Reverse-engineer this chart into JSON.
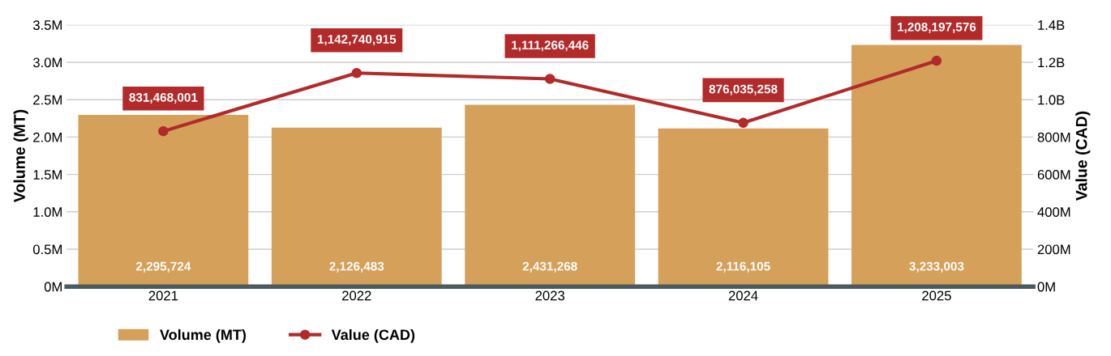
{
  "chart_data": {
    "type": "bar",
    "categories": [
      "2021",
      "2022",
      "2023",
      "2024",
      "2025"
    ],
    "series": [
      {
        "name": "Volume (MT)",
        "color": "#d4a05a",
        "values": [
          2295724,
          2126483,
          2431268,
          2116105,
          3233003
        ],
        "value_labels": [
          "2,295,724",
          "2,126,483",
          "2,431,268",
          "2,116,105",
          "3,233,003"
        ]
      },
      {
        "name": "Value (CAD)",
        "type": "line",
        "axis": "y2",
        "color": "#b22a2a",
        "marker": "circle",
        "values": [
          831468001,
          1142740915,
          1111266446,
          876035258,
          1208197576
        ],
        "value_labels": [
          "831,468,001",
          "1,142,740,915",
          "1,111,266,446",
          "876,035,258",
          "1,208,197,576"
        ]
      }
    ],
    "ylabel": "Volume (MT)",
    "y2label": "Value (CAD)",
    "ylim": [
      0,
      3500000
    ],
    "yticks": [
      {
        "value": 0,
        "label": "0M"
      },
      {
        "value": 500000,
        "label": "0.5M"
      },
      {
        "value": 1000000,
        "label": "1.0M"
      },
      {
        "value": 1500000,
        "label": "1.5M"
      },
      {
        "value": 2000000,
        "label": "2.0M"
      },
      {
        "value": 2500000,
        "label": "2.5M"
      },
      {
        "value": 3000000,
        "label": "3.0M"
      },
      {
        "value": 3500000,
        "label": "3.5M"
      }
    ],
    "y2lim": [
      0,
      1400000000
    ],
    "y2ticks": [
      {
        "value": 0,
        "label": "0M"
      },
      {
        "value": 200000000,
        "label": "200M"
      },
      {
        "value": 400000000,
        "label": "400M"
      },
      {
        "value": 600000000,
        "label": "600M"
      },
      {
        "value": 800000000,
        "label": "800M"
      },
      {
        "value": 1000000000,
        "label": "1.0B"
      },
      {
        "value": 1200000000,
        "label": "1.2B"
      },
      {
        "value": 1400000000,
        "label": "1.4B"
      }
    ],
    "grid": "y",
    "legend": "bottom"
  }
}
